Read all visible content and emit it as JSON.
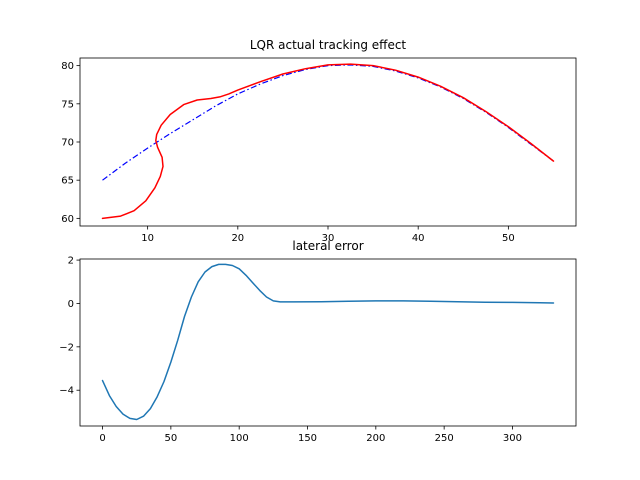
{
  "chart_data": [
    {
      "type": "line",
      "title": "LQR actual tracking effect",
      "xlabel": "",
      "ylabel": "",
      "xlim": [
        2.5,
        57.5
      ],
      "ylim": [
        59.0,
        81.0
      ],
      "xticks": [
        10,
        20,
        30,
        40,
        50
      ],
      "yticks": [
        60,
        65,
        70,
        75,
        80
      ],
      "grid": false,
      "series": [
        {
          "role": "reference",
          "color": "#0000ff",
          "style": "dashdot",
          "x": [
            5,
            7.5,
            10,
            12.5,
            15,
            17.5,
            20,
            22.5,
            25,
            27.5,
            30,
            32.5,
            35,
            37.5,
            40,
            42.5,
            45,
            47.5,
            50,
            52.5,
            55
          ],
          "y": [
            65.0,
            67.2,
            69.2,
            71.1,
            72.9,
            74.7,
            76.3,
            77.6,
            78.7,
            79.5,
            80.0,
            80.1,
            79.9,
            79.3,
            78.4,
            77.2,
            75.7,
            73.9,
            71.9,
            69.7,
            67.5
          ]
        },
        {
          "role": "actual",
          "color": "#ff0000",
          "style": "solid",
          "x": [
            5.0,
            7.0,
            8.5,
            9.8,
            10.8,
            11.4,
            11.7,
            11.6,
            11.1,
            10.9,
            11.0,
            11.5,
            12.5,
            14.0,
            15.5,
            17.0,
            18.0,
            19.0,
            20.0,
            22.5,
            25,
            27.5,
            30,
            32.5,
            35,
            37.5,
            40,
            42.5,
            45,
            47.5,
            50,
            52.5,
            55
          ],
          "y": [
            60.0,
            60.3,
            61.0,
            62.3,
            64.0,
            65.5,
            66.8,
            68.0,
            69.3,
            70.2,
            71.0,
            72.2,
            73.6,
            74.9,
            75.5,
            75.7,
            75.9,
            76.3,
            76.8,
            77.9,
            78.9,
            79.6,
            80.1,
            80.2,
            80.0,
            79.4,
            78.5,
            77.3,
            75.8,
            74.0,
            72.0,
            69.8,
            67.5
          ]
        }
      ]
    },
    {
      "type": "line",
      "title": "lateral error",
      "xlabel": "",
      "ylabel": "",
      "xlim": [
        -16.5,
        346.5
      ],
      "ylim": [
        -5.65,
        2.05
      ],
      "xticks": [
        0,
        50,
        100,
        150,
        200,
        250,
        300
      ],
      "yticks": [
        -4,
        -2,
        0,
        2
      ],
      "ytick_labels": [
        "−4",
        "−2",
        "0",
        "2"
      ],
      "grid": false,
      "series": [
        {
          "color": "#1f77b4",
          "style": "solid",
          "x": [
            0,
            5,
            10,
            15,
            20,
            25,
            30,
            35,
            40,
            45,
            50,
            55,
            60,
            65,
            70,
            75,
            80,
            85,
            90,
            95,
            100,
            105,
            110,
            115,
            120,
            125,
            130,
            140,
            160,
            180,
            200,
            220,
            240,
            260,
            280,
            300,
            320,
            330
          ],
          "y": [
            -3.55,
            -4.25,
            -4.75,
            -5.1,
            -5.3,
            -5.35,
            -5.2,
            -4.85,
            -4.3,
            -3.6,
            -2.7,
            -1.7,
            -0.6,
            0.3,
            1.0,
            1.45,
            1.7,
            1.8,
            1.8,
            1.75,
            1.6,
            1.3,
            0.95,
            0.6,
            0.3,
            0.12,
            0.07,
            0.07,
            0.08,
            0.1,
            0.12,
            0.12,
            0.1,
            0.08,
            0.06,
            0.05,
            0.03,
            0.02
          ]
        }
      ]
    }
  ]
}
